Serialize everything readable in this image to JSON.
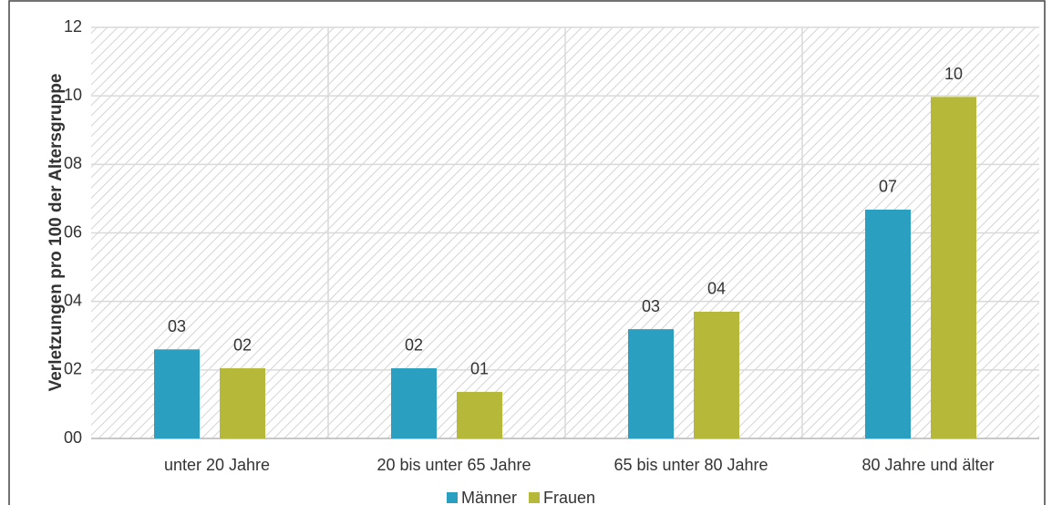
{
  "chart_data": {
    "type": "bar",
    "ylabel": "Verletzungen pro 100 der Altersgruppe",
    "categories": [
      "unter 20 Jahre",
      "20 bis unter 65 Jahre",
      "65 bis unter 80 Jahre",
      "80 Jahre und älter"
    ],
    "series": [
      {
        "name": "Männer",
        "color": "#2a9fc0",
        "values": [
          2.6,
          2.05,
          3.19,
          6.68
        ],
        "value_labels": [
          "03",
          "02",
          "03",
          "07"
        ]
      },
      {
        "name": "Frauen",
        "color": "#b6b83a",
        "values": [
          2.05,
          1.36,
          3.7,
          9.97
        ],
        "value_labels": [
          "02",
          "01",
          "04",
          "10"
        ]
      }
    ],
    "ylim": [
      0,
      12
    ],
    "yticks": [
      {
        "value": 0,
        "label": "00"
      },
      {
        "value": 2,
        "label": "02"
      },
      {
        "value": 4,
        "label": "04"
      },
      {
        "value": 6,
        "label": "06"
      },
      {
        "value": 8,
        "label": "08"
      },
      {
        "value": 10,
        "label": "10"
      },
      {
        "value": 12,
        "label": "12"
      }
    ],
    "grid": true,
    "legend": "bottom"
  }
}
